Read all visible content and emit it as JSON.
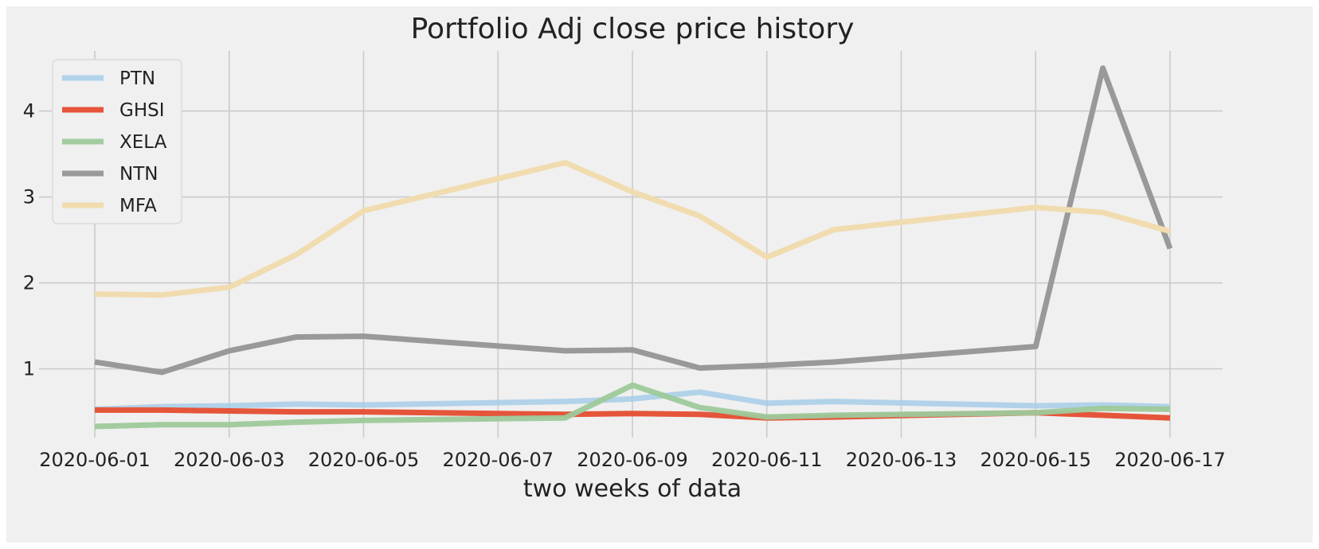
{
  "chart_data": {
    "type": "line",
    "title": "Portfolio Adj close price history",
    "xlabel": "two weeks of data",
    "ylabel": "",
    "x": [
      "2020-06-01",
      "2020-06-02",
      "2020-06-03",
      "2020-06-04",
      "2020-06-05",
      "2020-06-08",
      "2020-06-09",
      "2020-06-10",
      "2020-06-11",
      "2020-06-12",
      "2020-06-15",
      "2020-06-16",
      "2020-06-17"
    ],
    "xlim": [
      "2020-06-01",
      "2020-06-17"
    ],
    "xticks": [
      "2020-06-01",
      "2020-06-03",
      "2020-06-05",
      "2020-06-07",
      "2020-06-09",
      "2020-06-11",
      "2020-06-13",
      "2020-06-15",
      "2020-06-17"
    ],
    "ylim": [
      0.2,
      4.7
    ],
    "yticks": [
      1,
      2,
      3,
      4
    ],
    "grid": true,
    "legend_position": "top-left",
    "series": [
      {
        "name": "PTN",
        "color": "#a6cce8",
        "opacity": 0.85,
        "values": [
          0.53,
          0.56,
          0.57,
          0.59,
          0.58,
          0.62,
          0.65,
          0.73,
          0.6,
          0.62,
          0.57,
          0.58,
          0.56
        ]
      },
      {
        "name": "GHSI",
        "color": "#e5553a",
        "opacity": 1.0,
        "values": [
          0.52,
          0.52,
          0.51,
          0.5,
          0.5,
          0.47,
          0.48,
          0.47,
          0.43,
          0.44,
          0.49,
          0.46,
          0.43
        ]
      },
      {
        "name": "XELA",
        "color": "#9dc99a",
        "opacity": 0.95,
        "values": [
          0.33,
          0.35,
          0.35,
          0.38,
          0.4,
          0.43,
          0.81,
          0.55,
          0.44,
          0.46,
          0.49,
          0.54,
          0.53
        ]
      },
      {
        "name": "NTN",
        "color": "#999999",
        "opacity": 1.0,
        "values": [
          1.08,
          0.96,
          1.21,
          1.37,
          1.38,
          1.21,
          1.22,
          1.01,
          1.04,
          1.08,
          1.26,
          4.5,
          2.4
        ]
      },
      {
        "name": "MFA",
        "color": "#f1dcb0",
        "opacity": 1.0,
        "values": [
          1.87,
          1.86,
          1.95,
          2.33,
          2.84,
          3.4,
          3.06,
          2.78,
          2.3,
          2.62,
          2.88,
          2.82,
          2.6
        ]
      }
    ]
  }
}
